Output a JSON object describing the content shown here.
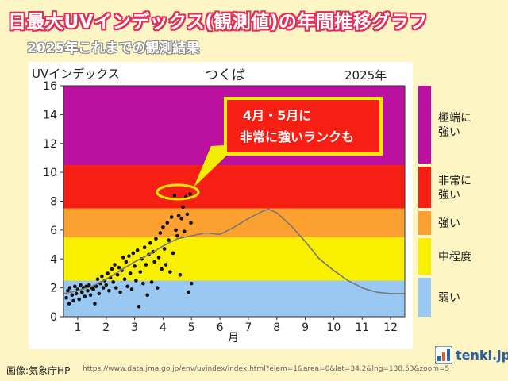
{
  "header": {
    "title": "日最大UVインデックス(観測値)の年間推移グラフ",
    "subtitle": "2025年これまでの観測結果"
  },
  "chart_data": {
    "type": "scatter",
    "title": "つくば",
    "year_label": "2025年",
    "ylabel": "UVインデックス",
    "xlabel": "月",
    "x_ticks": [
      "1",
      "2",
      "3",
      "4",
      "5",
      "6",
      "7",
      "8",
      "9",
      "10",
      "11",
      "12"
    ],
    "y_ticks": [
      "0",
      "2",
      "4",
      "6",
      "8",
      "10",
      "12",
      "14",
      "16"
    ],
    "xlim": [
      0.5,
      12.5
    ],
    "ylim": [
      0,
      16
    ],
    "bands": [
      {
        "label": "弱い",
        "from": 0,
        "to": 2.5,
        "color": "#99c9f2"
      },
      {
        "label": "中程度",
        "from": 2.5,
        "to": 5.5,
        "color": "#f8f000"
      },
      {
        "label": "強い",
        "from": 5.5,
        "to": 7.5,
        "color": "#fca130"
      },
      {
        "label": "非常に強い",
        "from": 7.5,
        "to": 10.5,
        "color": "#f71e14"
      },
      {
        "label": "極端に強い",
        "from": 10.5,
        "to": 16,
        "color": "#bb10a0"
      }
    ],
    "legend": [
      "極端に強い",
      "非常に強い",
      "強い",
      "中程度",
      "弱い"
    ],
    "annotation": {
      "text_line1": "4月・5月に",
      "text_line2": "非常に強いランクも"
    },
    "series": [
      {
        "values": [
          [
            0.6,
            1.3
          ],
          [
            0.65,
            1.8
          ],
          [
            0.7,
            0.9
          ],
          [
            0.72,
            2.0
          ],
          [
            0.8,
            1.5
          ],
          [
            0.85,
            1.1
          ],
          [
            0.9,
            2.1
          ],
          [
            0.95,
            1.6
          ],
          [
            1.0,
            1.9
          ],
          [
            1.05,
            1.2
          ],
          [
            1.1,
            2.2
          ],
          [
            1.15,
            1.7
          ],
          [
            1.2,
            2.0
          ],
          [
            1.25,
            1.4
          ],
          [
            1.3,
            2.1
          ],
          [
            1.35,
            1.8
          ],
          [
            1.4,
            2.2
          ],
          [
            1.45,
            1.5
          ],
          [
            1.5,
            2.0
          ],
          [
            1.55,
            1.9
          ],
          [
            1.6,
            0.9
          ],
          [
            1.65,
            2.1
          ],
          [
            1.7,
            2.6
          ],
          [
            1.75,
            1.6
          ],
          [
            1.8,
            2.3
          ],
          [
            1.85,
            2.8
          ],
          [
            1.9,
            2.0
          ],
          [
            1.95,
            2.5
          ],
          [
            2.0,
            2.2
          ],
          [
            2.05,
            3.0
          ],
          [
            2.1,
            1.8
          ],
          [
            2.15,
            2.7
          ],
          [
            2.2,
            3.3
          ],
          [
            2.25,
            2.4
          ],
          [
            2.3,
            3.6
          ],
          [
            2.35,
            2.0
          ],
          [
            2.4,
            2.9
          ],
          [
            2.45,
            3.4
          ],
          [
            2.5,
            1.7
          ],
          [
            2.55,
            3.2
          ],
          [
            2.6,
            4.1
          ],
          [
            2.65,
            2.6
          ],
          [
            2.7,
            3.8
          ],
          [
            2.75,
            2.1
          ],
          [
            2.8,
            4.2
          ],
          [
            2.85,
            3.0
          ],
          [
            2.9,
            1.9
          ],
          [
            2.95,
            4.4
          ],
          [
            3.0,
            3.5
          ],
          [
            3.05,
            2.5
          ],
          [
            3.1,
            4.6
          ],
          [
            3.15,
            0.7
          ],
          [
            3.2,
            3.1
          ],
          [
            3.25,
            4.0
          ],
          [
            3.3,
            2.3
          ],
          [
            3.35,
            4.8
          ],
          [
            3.4,
            3.6
          ],
          [
            3.45,
            1.5
          ],
          [
            3.5,
            4.3
          ],
          [
            3.55,
            5.1
          ],
          [
            3.6,
            2.4
          ],
          [
            3.65,
            4.5
          ],
          [
            3.7,
            3.8
          ],
          [
            3.75,
            5.4
          ],
          [
            3.8,
            2.0
          ],
          [
            3.85,
            4.1
          ],
          [
            3.9,
            5.8
          ],
          [
            3.95,
            3.3
          ],
          [
            4.0,
            6.2
          ],
          [
            4.05,
            4.7
          ],
          [
            4.1,
            3.6
          ],
          [
            4.15,
            6.5
          ],
          [
            4.2,
            5.3
          ],
          [
            4.25,
            3.1
          ],
          [
            4.3,
            6.9
          ],
          [
            4.35,
            4.4
          ],
          [
            4.4,
            8.4
          ],
          [
            4.45,
            6.0
          ],
          [
            4.5,
            5.6
          ],
          [
            4.55,
            7.0
          ],
          [
            4.6,
            2.9
          ],
          [
            4.65,
            6.8
          ],
          [
            4.7,
            7.6
          ],
          [
            4.75,
            5.9
          ],
          [
            4.8,
            8.3
          ],
          [
            4.85,
            7.1
          ],
          [
            4.9,
            1.7
          ],
          [
            4.95,
            8.5
          ],
          [
            4.98,
            6.5
          ],
          [
            5.0,
            2.3
          ]
        ]
      },
      {
        "type": "line",
        "values": [
          [
            0.5,
            1.6
          ],
          [
            1.0,
            1.8
          ],
          [
            1.5,
            2.1
          ],
          [
            2.0,
            2.6
          ],
          [
            2.5,
            3.2
          ],
          [
            3.0,
            3.8
          ],
          [
            3.5,
            4.3
          ],
          [
            4.0,
            4.9
          ],
          [
            4.5,
            5.4
          ],
          [
            5.0,
            5.6
          ],
          [
            5.5,
            5.8
          ],
          [
            6.0,
            5.7
          ],
          [
            6.5,
            6.2
          ],
          [
            7.0,
            6.8
          ],
          [
            7.5,
            7.3
          ],
          [
            7.7,
            7.45
          ],
          [
            8.0,
            7.2
          ],
          [
            8.5,
            6.3
          ],
          [
            9.0,
            5.2
          ],
          [
            9.5,
            4.0
          ],
          [
            10.0,
            3.2
          ],
          [
            10.5,
            2.5
          ],
          [
            11.0,
            2.0
          ],
          [
            11.5,
            1.7
          ],
          [
            12.0,
            1.6
          ],
          [
            12.5,
            1.6
          ]
        ]
      }
    ]
  },
  "footer": {
    "credit": "画像:気象庁HP",
    "url": "https://www.data.jma.go.jp/env/uvindex/index.html?elem=1&area=0&lat=34.2&lng=138.53&zoom=5",
    "logo_text": "tenki.jp",
    "logo_icon": "tenki-logo-icon"
  }
}
